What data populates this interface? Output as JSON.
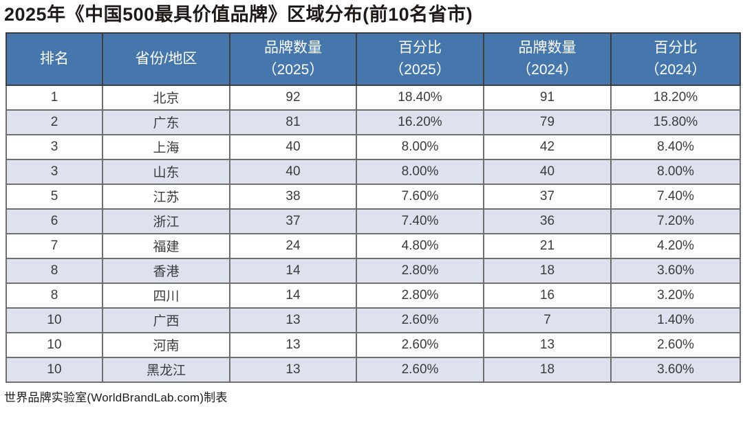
{
  "title": "2025年《中国500最具价值品牌》区域分布(前10名省市)",
  "table": {
    "columns": [
      {
        "label": "排名"
      },
      {
        "label": "省份/地区"
      },
      {
        "label": "品牌数量\n（2025）"
      },
      {
        "label": "百分比\n（2025）"
      },
      {
        "label": "品牌数量\n（2024）"
      },
      {
        "label": "百分比\n（2024）"
      }
    ],
    "rows": [
      [
        "1",
        "北京",
        "92",
        "18.40%",
        "91",
        "18.20%"
      ],
      [
        "2",
        "广东",
        "81",
        "16.20%",
        "79",
        "15.80%"
      ],
      [
        "3",
        "上海",
        "40",
        "8.00%",
        "42",
        "8.40%"
      ],
      [
        "3",
        "山东",
        "40",
        "8.00%",
        "40",
        "8.00%"
      ],
      [
        "5",
        "江苏",
        "38",
        "7.60%",
        "37",
        "7.40%"
      ],
      [
        "6",
        "浙江",
        "37",
        "7.40%",
        "36",
        "7.20%"
      ],
      [
        "7",
        "福建",
        "24",
        "4.80%",
        "21",
        "4.20%"
      ],
      [
        "8",
        "香港",
        "14",
        "2.80%",
        "18",
        "3.60%"
      ],
      [
        "8",
        "四川",
        "14",
        "2.80%",
        "16",
        "3.20%"
      ],
      [
        "10",
        "广西",
        "13",
        "2.60%",
        "7",
        "1.40%"
      ],
      [
        "10",
        "河南",
        "13",
        "2.60%",
        "13",
        "2.60%"
      ],
      [
        "10",
        "黑龙江",
        "13",
        "2.60%",
        "18",
        "3.60%"
      ]
    ]
  },
  "footer": {
    "source": "世界品牌实验室(WorldBrandLab.com)制表"
  },
  "colors": {
    "header_bg": "#4677ac",
    "header_text": "#ffffff",
    "stripe_bg": "#dee2ee",
    "row_bg": "#ffffff",
    "inner_border": "#6e6e6e",
    "outer_border": "#4a4a4a",
    "body_text": "#3b3b3b",
    "title_text": "#1f1a17"
  },
  "chart_data": {
    "type": "table",
    "title": "2025年《中国500最具价值品牌》区域分布(前10名省市)",
    "columns": [
      "排名",
      "省份/地区",
      "品牌数量（2025）",
      "百分比（2025）",
      "品牌数量（2024）",
      "百分比（2024）"
    ],
    "rows": [
      [
        "1",
        "北京",
        92,
        "18.40%",
        91,
        "18.20%"
      ],
      [
        "2",
        "广东",
        81,
        "16.20%",
        79,
        "15.80%"
      ],
      [
        "3",
        "上海",
        40,
        "8.00%",
        42,
        "8.40%"
      ],
      [
        "3",
        "山东",
        40,
        "8.00%",
        40,
        "8.00%"
      ],
      [
        "5",
        "江苏",
        38,
        "7.60%",
        37,
        "7.40%"
      ],
      [
        "6",
        "浙江",
        37,
        "7.40%",
        36,
        "7.20%"
      ],
      [
        "7",
        "福建",
        24,
        "4.80%",
        21,
        "4.20%"
      ],
      [
        "8",
        "香港",
        14,
        "2.80%",
        18,
        "3.60%"
      ],
      [
        "8",
        "四川",
        14,
        "2.80%",
        16,
        "3.20%"
      ],
      [
        "10",
        "广西",
        13,
        "2.60%",
        7,
        "1.40%"
      ],
      [
        "10",
        "河南",
        13,
        "2.60%",
        13,
        "2.60%"
      ],
      [
        "10",
        "黑龙江",
        13,
        "2.60%",
        18,
        "3.60%"
      ]
    ],
    "source_note": "世界品牌实验室(WorldBrandLab.com)制表",
    "layout_hints": {
      "striped_rows": true,
      "header_background": "#4677ac",
      "stripe_background": "#dee2ee"
    }
  }
}
